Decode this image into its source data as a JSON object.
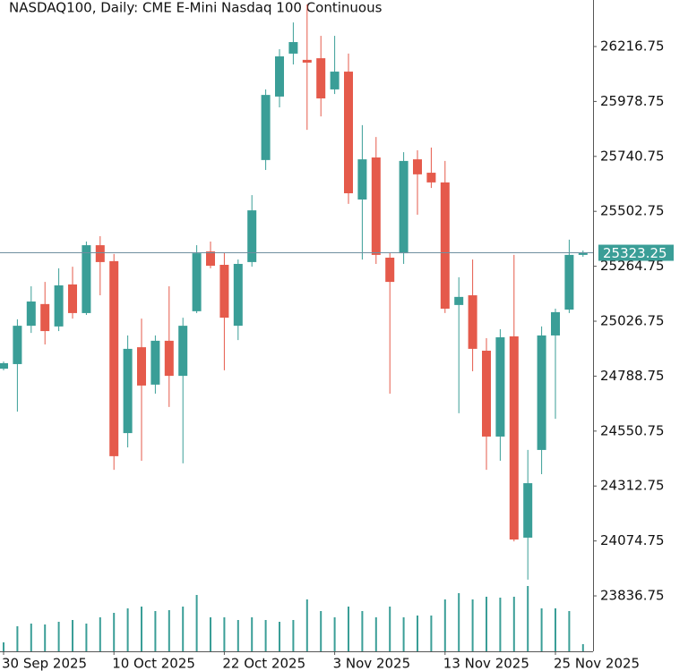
{
  "chart_data": {
    "type": "candlestick",
    "title": "NASDAQ100, Daily:  CME E-Mini Nasdaq 100 Continuous",
    "categories": [
      "30 Sep 2025",
      null,
      null,
      null,
      null,
      null,
      null,
      null,
      "10 Oct 2025",
      null,
      null,
      null,
      null,
      null,
      null,
      null,
      "22 Oct 2025",
      null,
      null,
      null,
      null,
      null,
      null,
      null,
      "3 Nov 2025",
      null,
      null,
      null,
      null,
      null,
      null,
      null,
      "13 Nov 2025",
      null,
      null,
      null,
      null,
      null,
      null,
      null,
      "25 Nov 2025",
      null,
      null
    ],
    "open": [
      24821,
      24841,
      25007,
      25101,
      25004,
      25186,
      25062,
      25356,
      25287,
      24542,
      24914,
      24752,
      24942,
      24790,
      25070,
      25329,
      25271,
      25007,
      25283,
      25725,
      26000,
      26186,
      26159,
      26166,
      26031,
      26108,
      25554,
      25736,
      25302,
      25321,
      25728,
      25670,
      25628,
      25097,
      25139,
      24899,
      24527,
      24961,
      24089,
      24469,
      24965,
      25077,
      25314
    ],
    "high": [
      24852,
      25035,
      25178,
      25197,
      25256,
      25263,
      25372,
      25395,
      25318,
      24965,
      25038,
      24965,
      25178,
      25042,
      25356,
      25372,
      25325,
      25294,
      25573,
      26031,
      26205,
      26321,
      26399,
      26263,
      26263,
      26186,
      25876,
      25825,
      25325,
      25759,
      25767,
      25779,
      25721,
      25217,
      25294,
      24953,
      24992,
      25314,
      24469,
      25004,
      25081,
      25380,
      25333
    ],
    "low": [
      24814,
      24635,
      24976,
      24926,
      24984,
      25038,
      25054,
      25139,
      24383,
      24480,
      24422,
      24713,
      24655,
      24411,
      25062,
      25256,
      24814,
      24945,
      25263,
      25682,
      25953,
      26139,
      25856,
      25914,
      26011,
      25535,
      25294,
      25275,
      24713,
      25275,
      25488,
      25604,
      25062,
      24628,
      24810,
      24383,
      24422,
      24073,
      23907,
      24364,
      24604,
      25062,
      25306
    ],
    "close": [
      24845,
      25007,
      25112,
      24984,
      25182,
      25062,
      25356,
      25283,
      24442,
      24907,
      24748,
      24942,
      24790,
      25007,
      25321,
      25267,
      25042,
      25275,
      25507,
      26007,
      26174,
      26236,
      26147,
      25992,
      26108,
      25581,
      25728,
      25314,
      25197,
      25721,
      25663,
      25628,
      25081,
      25132,
      24907,
      24527,
      24957,
      24081,
      24325,
      24965,
      25066,
      25314,
      25323.25
    ],
    "volume": [
      10,
      28,
      31,
      30,
      33,
      35,
      31,
      38,
      43,
      48,
      50,
      45,
      46,
      50,
      63,
      38,
      38,
      35,
      38,
      35,
      33,
      35,
      58,
      45,
      38,
      50,
      45,
      38,
      50,
      38,
      40,
      40,
      58,
      65,
      58,
      61,
      60,
      61,
      73,
      48,
      48,
      45,
      8
    ],
    "up_color": "#3a9e97",
    "down_color": "#e55a4b",
    "volume_color": "#3a9e97",
    "ylim": [
      23596.6,
      26418.3
    ],
    "yticks": [
      23836.75,
      24074.75,
      24312.75,
      24550.75,
      24788.75,
      25026.75,
      25264.75,
      25502.75,
      25740.75,
      25978.75,
      26216.75
    ],
    "last_price": 25323.25
  }
}
